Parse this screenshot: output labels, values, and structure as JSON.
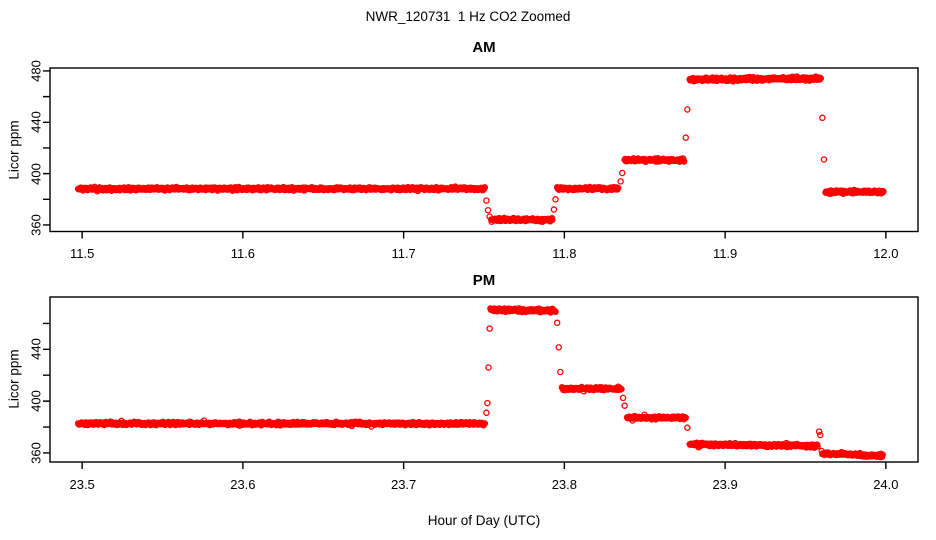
{
  "page": {
    "title": "NWR_120731  1 Hz CO2 Zoomed",
    "xlabel": "Hour of Day (UTC)",
    "background": "#FFFFFF",
    "axis_color": "#000000",
    "point_color": "#FF0000"
  },
  "chart_data": [
    {
      "type": "scatter",
      "panel": "AM",
      "title": "AM",
      "ylabel": "Licor ppm",
      "marker": "open-circle",
      "color": "#FF0000",
      "sample_rate_hz": 1,
      "xlim": [
        11.48,
        12.02
      ],
      "ylim": [
        354.9,
        482.3
      ],
      "xticks": [
        "11.5",
        "11.6",
        "11.7",
        "11.8",
        "11.9",
        "12.0"
      ],
      "xtick_values": [
        11.5,
        11.6,
        11.7,
        11.8,
        11.9,
        12.0
      ],
      "yticks": [
        "360",
        "400",
        "440",
        "480"
      ],
      "ytick_values": [
        360,
        400,
        440,
        480
      ],
      "ytick_minor_values": [
        360,
        380,
        400,
        420,
        440,
        460,
        480
      ],
      "segments": [
        {
          "t0": 11.4975,
          "t1": 11.7505,
          "ppm": 388.2,
          "noise": 0.5,
          "drift": 0
        },
        {
          "t0": 11.7545,
          "t1": 11.7925,
          "ppm": 364.0,
          "noise": 0.5,
          "drift": 0
        },
        {
          "t0": 11.7955,
          "t1": 11.8335,
          "ppm": 388.3,
          "noise": 0.5,
          "drift": 0
        },
        {
          "t0": 11.8375,
          "t1": 11.8745,
          "ppm": 410.5,
          "noise": 0.5,
          "drift": 0
        },
        {
          "t0": 11.878,
          "t1": 11.9595,
          "ppm": 473.3,
          "noise": 0.6,
          "drift": 0.9
        },
        {
          "t0": 11.9625,
          "t1": 11.9985,
          "ppm": 385.8,
          "noise": 0.5,
          "drift": 0
        }
      ],
      "transition_points": [
        [
          11.7515,
          379.0
        ],
        [
          11.7525,
          371.5
        ],
        [
          11.7535,
          366.5
        ],
        [
          11.7935,
          372.0
        ],
        [
          11.7945,
          380.0
        ],
        [
          11.835,
          394.0
        ],
        [
          11.836,
          400.5
        ],
        [
          11.8755,
          428.0
        ],
        [
          11.8765,
          450.0
        ],
        [
          11.9605,
          443.5
        ],
        [
          11.9615,
          411.0
        ]
      ]
    },
    {
      "type": "scatter",
      "panel": "PM",
      "title": "PM",
      "ylabel": "Licor ppm",
      "marker": "open-circle",
      "color": "#FF0000",
      "sample_rate_hz": 1,
      "xlim": [
        23.48,
        24.02
      ],
      "ylim": [
        353.0,
        480.4
      ],
      "xticks": [
        "23.5",
        "23.6",
        "23.7",
        "23.8",
        "23.9",
        "24.0"
      ],
      "xtick_values": [
        23.5,
        23.6,
        23.7,
        23.8,
        23.9,
        24.0
      ],
      "yticks": [
        "360",
        "400",
        "440"
      ],
      "ytick_values": [
        360,
        400,
        440
      ],
      "ytick_minor_values": [
        360,
        380,
        400,
        420,
        440,
        460
      ],
      "segments": [
        {
          "t0": 23.4975,
          "t1": 23.7505,
          "ppm": 382.7,
          "noise": 0.5,
          "drift": 0
        },
        {
          "t0": 23.754,
          "t1": 23.7945,
          "ppm": 470.6,
          "noise": 0.6,
          "drift": -0.8
        },
        {
          "t0": 23.7985,
          "t1": 23.8355,
          "ppm": 409.6,
          "noise": 0.5,
          "drift": 0
        },
        {
          "t0": 23.839,
          "t1": 23.8755,
          "ppm": 387.2,
          "noise": 0.5,
          "drift": 0
        },
        {
          "t0": 23.878,
          "t1": 23.9575,
          "ppm": 366.6,
          "noise": 0.5,
          "drift": -1.2
        },
        {
          "t0": 23.9605,
          "t1": 23.998,
          "ppm": 359.6,
          "noise": 0.5,
          "drift": -1.8
        }
      ],
      "transition_points": [
        [
          23.7515,
          391.0
        ],
        [
          23.7521,
          398.5
        ],
        [
          23.7528,
          426.0
        ],
        [
          23.7535,
          456.0
        ],
        [
          23.7955,
          460.5
        ],
        [
          23.7965,
          441.5
        ],
        [
          23.7975,
          422.5
        ],
        [
          23.8365,
          402.5
        ],
        [
          23.8375,
          396.5
        ],
        [
          23.8765,
          379.5
        ],
        [
          23.9585,
          376.5
        ],
        [
          23.9592,
          373.8
        ],
        [
          23.9601,
          361.5
        ]
      ]
    }
  ]
}
